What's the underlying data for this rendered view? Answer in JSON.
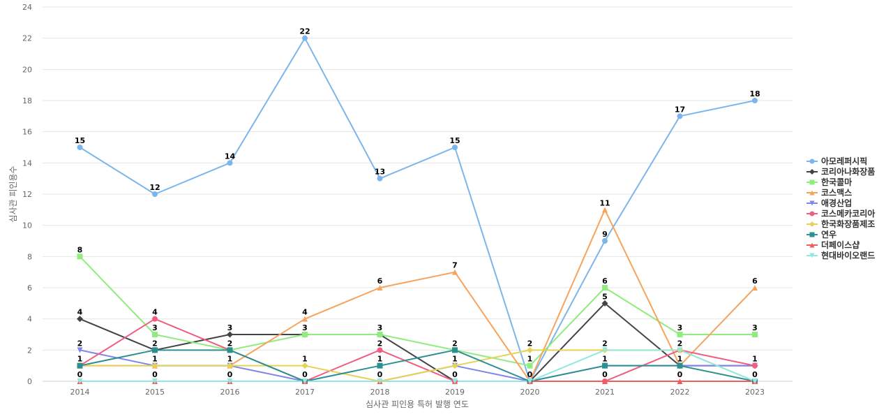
{
  "chart_data": {
    "type": "line",
    "title": "",
    "xlabel": "심사관 피인용 특허 발행 연도",
    "ylabel": "심사관 피인용수",
    "x": [
      "2014",
      "2015",
      "2016",
      "2017",
      "2018",
      "2019",
      "2020",
      "2021",
      "2022",
      "2023"
    ],
    "ylim": [
      0,
      24
    ],
    "yticks": [
      0,
      2,
      4,
      6,
      8,
      10,
      12,
      14,
      16,
      18,
      20,
      22,
      24
    ],
    "grid": true,
    "legend_position": "right",
    "series": [
      {
        "name": "아모레퍼시픽",
        "color": "#7cb5ec",
        "marker": "circle",
        "values": [
          15,
          12,
          14,
          22,
          13,
          15,
          0,
          9,
          17,
          18
        ]
      },
      {
        "name": "코리아나화장품",
        "color": "#434348",
        "marker": "diamond",
        "values": [
          4,
          2,
          3,
          3,
          3,
          0,
          0,
          5,
          1,
          1
        ]
      },
      {
        "name": "한국콜마",
        "color": "#90ed7d",
        "marker": "square",
        "values": [
          8,
          3,
          2,
          3,
          3,
          2,
          1,
          6,
          3,
          3
        ]
      },
      {
        "name": "코스맥스",
        "color": "#f7a35c",
        "marker": "triangle",
        "values": [
          1,
          1,
          1,
          4,
          6,
          7,
          0,
          11,
          1,
          6
        ]
      },
      {
        "name": "애경산업",
        "color": "#8085e9",
        "marker": "triangle-down",
        "values": [
          2,
          1,
          1,
          0,
          0,
          1,
          0,
          1,
          1,
          1
        ]
      },
      {
        "name": "코스메카코리아",
        "color": "#f15c80",
        "marker": "circle",
        "values": [
          1,
          4,
          2,
          0,
          2,
          0,
          0,
          0,
          2,
          1
        ]
      },
      {
        "name": "한국화장품제조",
        "color": "#e4d354",
        "marker": "diamond",
        "values": [
          1,
          1,
          1,
          1,
          0,
          1,
          2,
          2,
          2,
          0
        ]
      },
      {
        "name": "연우",
        "color": "#2b908f",
        "marker": "square",
        "values": [
          1,
          2,
          2,
          0,
          1,
          2,
          0,
          1,
          1,
          0
        ]
      },
      {
        "name": "더페이스샵",
        "color": "#f45b5b",
        "marker": "triangle",
        "values": [
          0,
          0,
          0,
          0,
          0,
          0,
          0,
          0,
          0,
          0
        ]
      },
      {
        "name": "현대바이오랜드",
        "color": "#91e8e1",
        "marker": "triangle-down",
        "values": [
          0,
          0,
          0,
          0,
          0,
          0,
          0,
          2,
          2,
          0
        ]
      }
    ],
    "data_labels": {
      "2014": [
        {
          "series": "아모레퍼시픽",
          "value": "15"
        },
        {
          "series": "한국콜마",
          "value": "8"
        },
        {
          "series": "코리아나화장품",
          "value": "4"
        },
        {
          "series": "애경산업",
          "value": "2"
        },
        {
          "series": "한국화장품제조",
          "value": "1"
        },
        {
          "series": "더페이스샵",
          "value": "0"
        }
      ],
      "2015": [
        {
          "series": "아모레퍼시픽",
          "value": "12"
        },
        {
          "series": "코스메카코리아",
          "value": "4"
        },
        {
          "series": "한국콜마",
          "value": "3"
        },
        {
          "series": "연우",
          "value": "2"
        },
        {
          "series": "한국화장품제조",
          "value": "1"
        },
        {
          "series": "더페이스샵",
          "value": "0"
        }
      ],
      "2016": [
        {
          "series": "아모레퍼시픽",
          "value": "14"
        },
        {
          "series": "코리아나화장품",
          "value": "3"
        },
        {
          "series": "연우",
          "value": "2"
        },
        {
          "series": "한국화장품제조",
          "value": "1"
        },
        {
          "series": "더페이스샵",
          "value": "0"
        }
      ],
      "2017": [
        {
          "series": "아모레퍼시픽",
          "value": "22"
        },
        {
          "series": "코스맥스",
          "value": "4"
        },
        {
          "series": "한국콜마",
          "value": "3"
        },
        {
          "series": "한국화장품제조",
          "value": "1"
        },
        {
          "series": "연우",
          "value": "0"
        }
      ],
      "2018": [
        {
          "series": "아모레퍼시픽",
          "value": "13"
        },
        {
          "series": "코스맥스",
          "value": "6"
        },
        {
          "series": "한국콜마",
          "value": "3"
        },
        {
          "series": "코스메카코리아",
          "value": "2"
        },
        {
          "series": "연우",
          "value": "1"
        },
        {
          "series": "한국화장품제조",
          "value": "0"
        }
      ],
      "2019": [
        {
          "series": "아모레퍼시픽",
          "value": "15"
        },
        {
          "series": "코스맥스",
          "value": "7"
        },
        {
          "series": "연우",
          "value": "2"
        },
        {
          "series": "한국화장품제조",
          "value": "1"
        },
        {
          "series": "코스메카코리아",
          "value": "0"
        }
      ],
      "2020": [
        {
          "series": "한국화장품제조",
          "value": "2"
        },
        {
          "series": "한국콜마",
          "value": "1"
        },
        {
          "series": "아모레퍼시픽",
          "value": "0"
        }
      ],
      "2021": [
        {
          "series": "코스맥스",
          "value": "11"
        },
        {
          "series": "아모레퍼시픽",
          "value": "9"
        },
        {
          "series": "한국콜마",
          "value": "6"
        },
        {
          "series": "코리아나화장품",
          "value": "5"
        },
        {
          "series": "현대바이오랜드",
          "value": "2"
        },
        {
          "series": "연우",
          "value": "1"
        },
        {
          "series": "코스메카코리아",
          "value": "0"
        }
      ],
      "2022": [
        {
          "series": "아모레퍼시픽",
          "value": "17"
        },
        {
          "series": "한국콜마",
          "value": "3"
        },
        {
          "series": "현대바이오랜드",
          "value": "2"
        },
        {
          "series": "연우",
          "value": "1"
        },
        {
          "series": "더페이스샵",
          "value": "0"
        }
      ],
      "2023": [
        {
          "series": "아모레퍼시픽",
          "value": "18"
        },
        {
          "series": "코스맥스",
          "value": "6"
        },
        {
          "series": "한국콜마",
          "value": "3"
        },
        {
          "series": "코스메카코리아",
          "value": "1"
        },
        {
          "series": "연우",
          "value": "0"
        }
      ]
    }
  }
}
